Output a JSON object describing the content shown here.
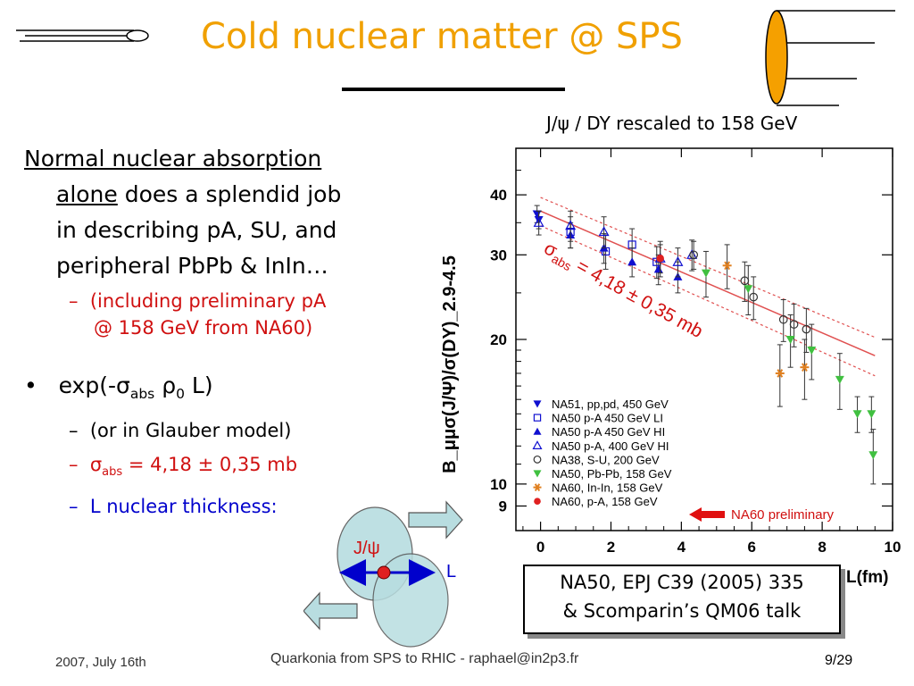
{
  "slide": {
    "title": "Cold nuclear matter @ SPS",
    "plot_caption": "J/ψ / DY rescaled to 158 GeV",
    "bullets": {
      "p1_u1": "Normal nuclear absorption",
      "p1_u2": "alone",
      "p1_rest1": " does a splendid job",
      "p1_rest2": "in describing pA, SU, and",
      "p1_rest3": "peripheral PbPb & InIn…",
      "sub1_dash": "–",
      "sub1_a": "(including preliminary pA",
      "sub1_b": "@ 158 GeV from NA60)",
      "b2_dot": "•",
      "b2_pre": "exp(-σ",
      "b2_sub1": "abs",
      "b2_mid": " ρ",
      "b2_sub2": "0",
      "b2_post": " L)",
      "s2_dash": "–",
      "s2": "(or in Glauber model)",
      "s3_dash": "–",
      "s3_pre": "σ",
      "s3_sub": "abs",
      "s3_post": " = 4,18 ± 0,35 mb",
      "s4_dash": "–",
      "s4": "L nuclear thickness:"
    },
    "diagram": {
      "label_jpsi": "J/ψ",
      "label_L": "L"
    },
    "reference": {
      "line1": "NA50, EPJ C39 (2005) 335",
      "line2": "& Scomparin’s QM06 talk"
    },
    "footer": {
      "date": "2007, July 16th",
      "center": "Quarkonia from SPS to RHIC - raphael@in2p3.fr",
      "page": "9/29"
    },
    "colors": {
      "title": "#f0a000",
      "accent_red": "#d01010",
      "accent_blue": "#0000cc",
      "fit_line": "#e05050",
      "diagram_fill": "#b8dde0"
    }
  },
  "chart_data": {
    "type": "scatter",
    "ylabel": "B_μμσ(J/Ψ)/σ(DY)_2.9-4.5",
    "xlabel": "L(fm)",
    "xlim": [
      -0.7,
      10
    ],
    "ylim": [
      8,
      50
    ],
    "yscale": "log",
    "x_ticks": [
      0,
      2,
      4,
      6,
      8,
      10
    ],
    "x_tick_labels": [
      "0",
      "2",
      "4",
      "6",
      "8",
      "10"
    ],
    "y_ticks": [
      9,
      10,
      20,
      30,
      40
    ],
    "y_tick_labels": [
      "9",
      "10",
      "20",
      "30",
      "40"
    ],
    "fit_label": "σabs = 4,18 ± 0,35 mb",
    "fit_label_parts": {
      "sigma": "σ",
      "sub": "abs",
      "rest": " = 4,18 ± 0,35 mb"
    },
    "fit": {
      "x": [
        0,
        9.5
      ],
      "y": [
        37.0,
        18.5
      ],
      "band_upper": [
        39.5,
        20.2
      ],
      "band_lower": [
        34.5,
        16.8
      ]
    },
    "annotation": "NA60 preliminary",
    "legend_position": "bottom-left",
    "series": [
      {
        "name": "NA51, pp,pd, 450 GeV",
        "marker": "tri-down-filled",
        "color": "#1010d0",
        "points": [
          [
            -0.1,
            36.5,
            1.5
          ],
          [
            -0.05,
            35.5,
            1.5
          ]
        ]
      },
      {
        "name": "NA50 p-A 450 GeV LI",
        "marker": "square-open",
        "color": "#1010d0",
        "points": [
          [
            0.85,
            33.5,
            2.5
          ],
          [
            1.85,
            30.5,
            2.5
          ],
          [
            2.6,
            31.5,
            2.5
          ],
          [
            3.3,
            29.0,
            2.2
          ]
        ]
      },
      {
        "name": "NA50 p-A 450 GeV HI",
        "marker": "tri-up-filled",
        "color": "#1010d0",
        "points": [
          [
            0.85,
            33.0,
            2.0
          ],
          [
            1.8,
            31.0,
            2.2
          ],
          [
            2.6,
            29.0,
            2.0
          ],
          [
            3.35,
            28.0,
            2.0
          ],
          [
            3.9,
            27.0,
            2.0
          ]
        ]
      },
      {
        "name": "NA50 p-A, 400 GeV HI",
        "marker": "tri-up-open",
        "color": "#1010d0",
        "points": [
          [
            -0.05,
            35.0,
            2.0
          ],
          [
            0.85,
            34.5,
            2.5
          ],
          [
            1.8,
            33.5,
            2.5
          ],
          [
            3.4,
            29.5,
            2.0
          ],
          [
            3.9,
            29.0,
            2.0
          ],
          [
            4.3,
            30.0,
            2.2
          ]
        ]
      },
      {
        "name": "NA38, S-U, 200 GeV",
        "marker": "circle-open",
        "color": "#333333",
        "points": [
          [
            4.35,
            30.0,
            2.0
          ],
          [
            5.8,
            26.5,
            2.5
          ],
          [
            6.05,
            24.5,
            2.5
          ],
          [
            6.9,
            22.0,
            2.2
          ],
          [
            7.2,
            21.5,
            2.2
          ],
          [
            7.55,
            21.0,
            2.2
          ]
        ]
      },
      {
        "name": "NA50, Pb-Pb, 158 GeV",
        "marker": "tri-down-filled",
        "color": "#40c040",
        "points": [
          [
            4.7,
            27.5,
            3.0
          ],
          [
            5.9,
            25.5,
            3.0
          ],
          [
            7.1,
            20.0,
            2.5
          ],
          [
            7.7,
            19.0,
            2.5
          ],
          [
            8.5,
            16.5,
            2.2
          ],
          [
            9.0,
            14.0,
            1.2
          ],
          [
            9.4,
            14.0,
            1.2
          ],
          [
            9.45,
            11.5,
            1.5
          ]
        ]
      },
      {
        "name": "NA60, In-In, 158 GeV",
        "marker": "asterisk",
        "color": "#e08020",
        "points": [
          [
            5.3,
            28.5,
            3.0
          ],
          [
            6.8,
            17.0,
            2.5
          ],
          [
            7.5,
            17.5,
            2.5
          ]
        ]
      },
      {
        "name": "NA60, p-A, 158 GeV",
        "marker": "circle-filled",
        "color": "#e02020",
        "points": [
          [
            3.4,
            29.5,
            2.5
          ]
        ]
      }
    ]
  }
}
